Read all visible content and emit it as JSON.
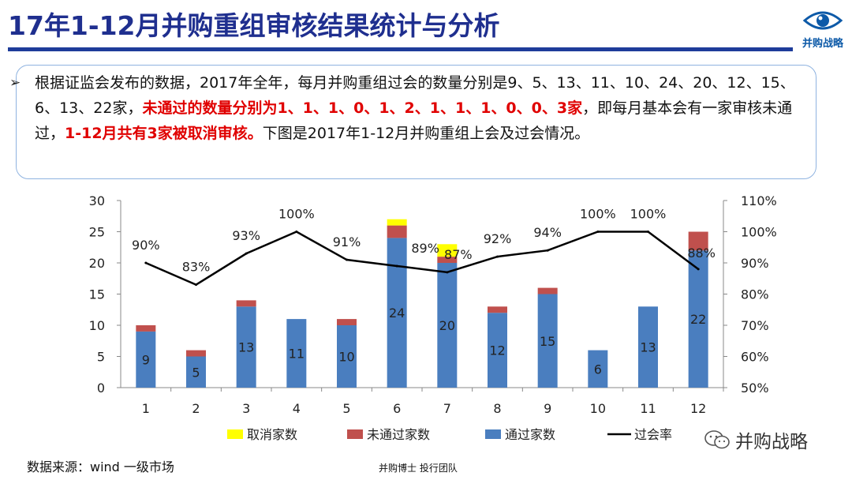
{
  "header": {
    "title": "17年1-12月并购重组审核结果统计与分析",
    "logo_text": "并购战略"
  },
  "paragraph": {
    "bullet": "➢",
    "part1": "根据证监会发布的数据，2017年全年，每月并购重组过会的数量分别是9、5、13、11、10、24、20、12、15、6、13、22家，",
    "part2_red": "未通过的数量分别为1、1、1、0、1、2、1、1、1、0、0、3家",
    "part3": "，即每月基本会有一家审核未通过，",
    "part4_red": "1-12月共有3家被取消审核。",
    "part5": "下图是2017年1-12月并购重组上会及过会情况。"
  },
  "chart_data": {
    "type": "bar",
    "stacked": true,
    "categories": [
      "1",
      "2",
      "3",
      "4",
      "5",
      "6",
      "7",
      "8",
      "9",
      "10",
      "11",
      "12"
    ],
    "series": [
      {
        "name": "通过家数",
        "color": "#4a7ebf",
        "values": [
          9,
          5,
          13,
          11,
          10,
          24,
          20,
          12,
          15,
          6,
          13,
          22
        ]
      },
      {
        "name": "未通过家数",
        "color": "#c0504d",
        "values": [
          1,
          1,
          1,
          0,
          1,
          2,
          1,
          1,
          1,
          0,
          0,
          3
        ]
      },
      {
        "name": "取消家数",
        "color": "#ffff00",
        "values": [
          0,
          0,
          0,
          0,
          0,
          1,
          2,
          0,
          0,
          0,
          0,
          0
        ]
      }
    ],
    "line": {
      "name": "过会率",
      "color": "#000000",
      "axis": "right",
      "values": [
        90,
        83,
        93,
        100,
        91,
        89,
        87,
        92,
        94,
        100,
        100,
        88
      ],
      "labels": [
        "90%",
        "83%",
        "93%",
        "100%",
        "91%",
        "89%",
        "87%",
        "92%",
        "94%",
        "100%",
        "100%",
        "88%"
      ]
    },
    "y_left": {
      "min": 0,
      "max": 30,
      "ticks": [
        "0",
        "5",
        "10",
        "15",
        "20",
        "25",
        "30"
      ]
    },
    "y_right": {
      "min": 50,
      "max": 110,
      "ticks": [
        "50%",
        "60%",
        "70%",
        "80%",
        "90%",
        "100%",
        "110%"
      ]
    },
    "legend": {
      "position": "bottom",
      "items": [
        {
          "label": "取消家数",
          "color": "#ffff00",
          "kind": "box"
        },
        {
          "label": "未通过家数",
          "color": "#c0504d",
          "kind": "box"
        },
        {
          "label": "通过家数",
          "color": "#4a7ebf",
          "kind": "box"
        },
        {
          "label": "过会率",
          "color": "#000000",
          "kind": "line"
        }
      ]
    },
    "grid": false
  },
  "footer": {
    "source": "数据来源：wind 一级市场",
    "center": "并购博士 投行团队",
    "watermark": "并购战略"
  }
}
